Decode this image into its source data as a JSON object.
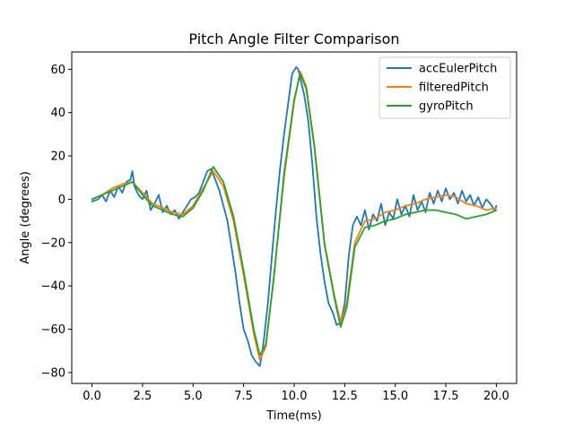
{
  "chart_data": {
    "type": "line",
    "title": "Pitch Angle Filter Comparison",
    "xlabel": "Time(ms)",
    "ylabel": "Angle (degrees)",
    "xlim": [
      -1.0,
      21.0
    ],
    "ylim": [
      -85,
      68
    ],
    "xticks": [
      0.0,
      2.5,
      5.0,
      7.5,
      10.0,
      12.5,
      15.0,
      17.5,
      20.0
    ],
    "xtick_labels": [
      "0.0",
      "2.5",
      "5.0",
      "7.5",
      "10.0",
      "12.5",
      "15.0",
      "17.5",
      "20.0"
    ],
    "yticks": [
      -80,
      -60,
      -40,
      -20,
      0,
      20,
      40,
      60
    ],
    "ytick_labels": [
      "−80",
      "−60",
      "−40",
      "−20",
      "0",
      "20",
      "40",
      "60"
    ],
    "grid": false,
    "legend_position": "top-right",
    "series": [
      {
        "name": "accEulerPitch",
        "color": "#1f77b4",
        "x": [
          0.0,
          0.3,
          0.5,
          0.7,
          0.9,
          1.1,
          1.3,
          1.5,
          1.7,
          1.9,
          2.0,
          2.1,
          2.3,
          2.5,
          2.7,
          2.9,
          3.1,
          3.3,
          3.5,
          3.7,
          3.9,
          4.1,
          4.3,
          4.5,
          4.7,
          4.9,
          5.1,
          5.3,
          5.5,
          5.7,
          5.9,
          6.1,
          6.3,
          6.5,
          6.7,
          6.9,
          7.1,
          7.3,
          7.5,
          7.7,
          7.9,
          8.1,
          8.3,
          8.4,
          8.5,
          8.7,
          8.9,
          9.1,
          9.3,
          9.5,
          9.7,
          9.9,
          10.1,
          10.2,
          10.3,
          10.5,
          10.7,
          10.9,
          11.1,
          11.3,
          11.5,
          11.7,
          11.9,
          12.1,
          12.3,
          12.5,
          12.7,
          12.9,
          13.1,
          13.3,
          13.5,
          13.7,
          13.9,
          14.1,
          14.3,
          14.5,
          14.7,
          14.9,
          15.1,
          15.3,
          15.5,
          15.7,
          15.9,
          16.1,
          16.3,
          16.5,
          16.7,
          16.9,
          17.1,
          17.3,
          17.5,
          17.7,
          17.9,
          18.1,
          18.3,
          18.5,
          18.7,
          18.9,
          19.1,
          19.3,
          19.5,
          19.7,
          19.9,
          20.0
        ],
        "y": [
          -1,
          0,
          2,
          -1,
          4,
          1,
          6,
          3,
          8,
          9,
          13,
          6,
          2,
          0,
          4,
          -5,
          -2,
          2,
          -6,
          -3,
          -7,
          -5,
          -9,
          -6,
          -3,
          0,
          1,
          3,
          8,
          13,
          14,
          9,
          4,
          -3,
          -10,
          -22,
          -34,
          -48,
          -60,
          -65,
          -72,
          -75,
          -77,
          -72,
          -65,
          -48,
          -26,
          -5,
          14,
          30,
          44,
          58,
          61,
          60,
          56,
          48,
          36,
          16,
          -8,
          -25,
          -38,
          -48,
          -52,
          -58,
          -57,
          -48,
          -26,
          -12,
          -8,
          -12,
          -5,
          -14,
          -7,
          -10,
          -2,
          -12,
          -6,
          -9,
          0,
          -7,
          -3,
          -8,
          2,
          -5,
          -1,
          -6,
          3,
          -2,
          4,
          -1,
          5,
          0,
          3,
          -2,
          4,
          -1,
          2,
          -3,
          1,
          -4,
          0,
          -2,
          -5,
          -3
        ]
      },
      {
        "name": "filteredPitch",
        "color": "#ff7f0e",
        "x": [
          0.0,
          0.5,
          1.0,
          1.5,
          2.0,
          2.5,
          3.0,
          3.5,
          4.0,
          4.5,
          5.0,
          5.5,
          6.0,
          6.5,
          7.0,
          7.5,
          8.0,
          8.3,
          8.6,
          9.0,
          9.5,
          10.0,
          10.3,
          10.6,
          11.0,
          11.5,
          12.0,
          12.3,
          12.6,
          13.0,
          13.5,
          14.0,
          14.5,
          15.0,
          15.5,
          16.0,
          16.5,
          17.0,
          17.5,
          18.0,
          18.5,
          19.0,
          19.5,
          20.0
        ],
        "y": [
          0,
          2,
          5,
          7,
          8,
          3,
          -2,
          -4,
          -6,
          -7,
          -3,
          5,
          13,
          6,
          -10,
          -35,
          -62,
          -74,
          -68,
          -35,
          10,
          45,
          59,
          52,
          25,
          -20,
          -45,
          -57,
          -48,
          -20,
          -10,
          -9,
          -6,
          -5,
          -3,
          -2,
          0,
          1,
          2,
          1,
          -2,
          -3,
          -5,
          -4
        ]
      },
      {
        "name": "gyroPitch",
        "color": "#2ca02c",
        "x": [
          0.0,
          0.5,
          1.0,
          1.5,
          2.0,
          2.5,
          3.0,
          3.5,
          4.0,
          4.5,
          5.0,
          5.5,
          6.0,
          6.5,
          7.0,
          7.5,
          8.0,
          8.3,
          8.6,
          9.0,
          9.5,
          10.0,
          10.3,
          10.6,
          11.0,
          11.5,
          12.0,
          12.3,
          12.6,
          13.0,
          13.5,
          14.0,
          14.5,
          15.0,
          15.5,
          16.0,
          16.5,
          17.0,
          17.5,
          18.0,
          18.5,
          19.0,
          19.5,
          20.0
        ],
        "y": [
          0,
          2,
          4,
          6,
          8,
          2,
          -3,
          -5,
          -7,
          -8,
          -4,
          4,
          15,
          8,
          -8,
          -33,
          -60,
          -72,
          -67,
          -36,
          12,
          46,
          58,
          51,
          24,
          -21,
          -46,
          -59,
          -50,
          -22,
          -13,
          -12,
          -10,
          -9,
          -7,
          -6,
          -5,
          -5,
          -6,
          -7,
          -9,
          -8,
          -7,
          -5
        ]
      }
    ]
  }
}
